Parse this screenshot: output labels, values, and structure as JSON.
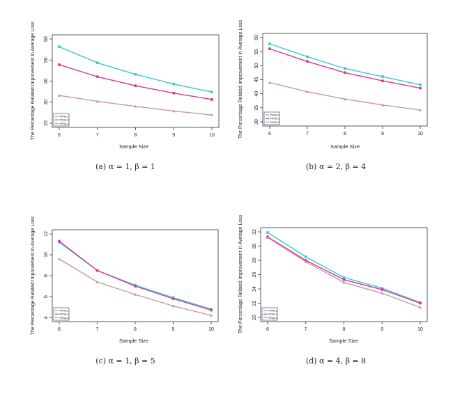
{
  "chart_data": [
    {
      "type": "line",
      "xlabel": "Sample Size",
      "ylabel": "The Percentage Related Improvement in Average Loss",
      "x": [
        6,
        7,
        8,
        9,
        10
      ],
      "ylim": [
        20,
        60
      ],
      "yticks": [
        20,
        30,
        40,
        50,
        60
      ],
      "legend_position": "bottom-left",
      "series": [
        {
          "name": "PRIAL1",
          "color": "#35C9D6",
          "marker": "square",
          "values": [
            56.3,
            48.7,
            43.2,
            38.6,
            34.8
          ]
        },
        {
          "name": "PRIAL2",
          "color": "#D9368D",
          "marker": "circle",
          "values": [
            47.8,
            42.1,
            37.8,
            34.3,
            31.3
          ]
        },
        {
          "name": "PRIAL3",
          "color": "#C49A9A",
          "marker": "triangle",
          "values": [
            33.2,
            30.4,
            28.0,
            25.8,
            23.9
          ]
        }
      ],
      "caption": "(a) α = 1, β = 1"
    },
    {
      "type": "line",
      "xlabel": "Sample Size",
      "ylabel": "The Percentage Related Improvement in Average Loss",
      "x": [
        6,
        7,
        8,
        9,
        10
      ],
      "ylim": [
        30,
        60
      ],
      "yticks": [
        30,
        35,
        40,
        45,
        50,
        55,
        60
      ],
      "legend_position": "bottom-left",
      "series": [
        {
          "name": "PRIAL1",
          "color": "#35C9D6",
          "marker": "square",
          "values": [
            57.8,
            53.2,
            49.0,
            46.1,
            43.2
          ]
        },
        {
          "name": "PRIAL2",
          "color": "#D9368D",
          "marker": "circle",
          "values": [
            56.0,
            51.5,
            47.5,
            44.6,
            42.0
          ]
        },
        {
          "name": "PRIAL3",
          "color": "#C49A9A",
          "marker": "triangle",
          "values": [
            44.0,
            40.7,
            38.1,
            36.0,
            34.2
          ]
        }
      ],
      "caption": "(b) α = 2, β = 4"
    },
    {
      "type": "line",
      "xlabel": "Sample Size",
      "ylabel": "The Percentage Related Improvement in Average Loss",
      "x": [
        6,
        7,
        8,
        9,
        10
      ],
      "ylim": [
        4,
        12
      ],
      "yticks": [
        4,
        6,
        8,
        10,
        12
      ],
      "legend_position": "bottom-left",
      "series": [
        {
          "name": "PRIAL1",
          "color": "#35C9D6",
          "marker": "square",
          "values": [
            11.2,
            8.5,
            7.1,
            5.9,
            4.8
          ]
        },
        {
          "name": "PRIAL2",
          "color": "#D9368D",
          "marker": "circle",
          "values": [
            11.3,
            8.5,
            7.0,
            5.8,
            4.7
          ]
        },
        {
          "name": "PRIAL3",
          "color": "#C49A9A",
          "marker": "triangle",
          "values": [
            9.6,
            7.4,
            6.2,
            5.1,
            4.2
          ]
        }
      ],
      "caption": "(c) α = 1, β = 5"
    },
    {
      "type": "line",
      "xlabel": "Sample Size",
      "ylabel": "The Percentage Related Improvement in Average Loss",
      "x": [
        6,
        7,
        8,
        9,
        10
      ],
      "ylim": [
        20,
        32
      ],
      "yticks": [
        20,
        22,
        24,
        26,
        28,
        30,
        32
      ],
      "legend_position": "bottom-left",
      "series": [
        {
          "name": "PRIAL1",
          "color": "#35C9D6",
          "marker": "square",
          "values": [
            31.9,
            28.5,
            25.6,
            24.1,
            22.1
          ]
        },
        {
          "name": "PRIAL2",
          "color": "#D9368D",
          "marker": "circle",
          "values": [
            31.3,
            28.0,
            25.3,
            23.9,
            22.0
          ]
        },
        {
          "name": "PRIAL3",
          "color": "#C49A9A",
          "marker": "triangle",
          "values": [
            31.2,
            27.8,
            24.9,
            23.4,
            21.4
          ]
        }
      ],
      "caption": "(d) α = 4, β = 8"
    }
  ]
}
